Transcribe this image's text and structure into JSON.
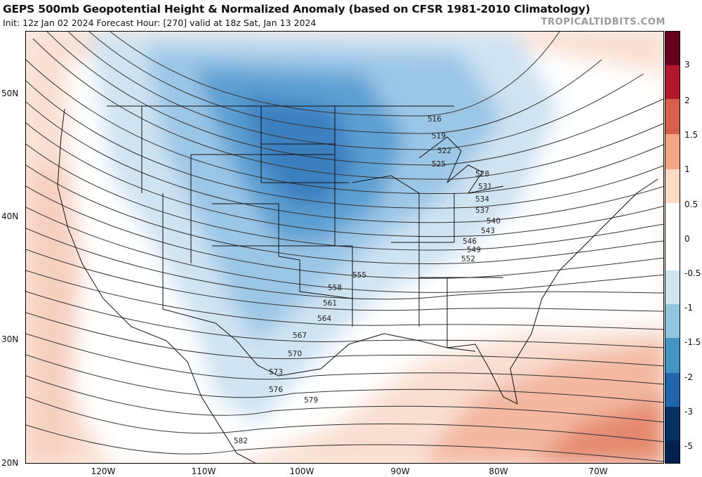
{
  "header": {
    "title": "GEPS 500mb Geopotential Height & Normalized Anomaly (based on CFSR 1981-2010 Climatology)",
    "subtitle": "Init: 12z Jan 02 2024   Forecast Hour: [270]   valid at 18z Sat, Jan 13 2024",
    "watermark": "TROPICALTIDBITS.COM"
  },
  "map": {
    "region": "Contiguous United States",
    "latitude_labels": [
      "50N",
      "40N",
      "30N",
      "20N"
    ],
    "longitude_labels": [
      "120W",
      "110W",
      "100W",
      "90W",
      "80W",
      "70W"
    ],
    "contour_labels": [
      "516",
      "519",
      "522",
      "525",
      "528",
      "531",
      "534",
      "537",
      "540",
      "543",
      "546",
      "549",
      "552",
      "555",
      "558",
      "561",
      "564",
      "567",
      "570",
      "573",
      "576",
      "579",
      "582"
    ],
    "anomaly_colors": {
      "strong_negative": "#2c6fb0",
      "negative": "#6aa7d6",
      "weak_negative": "#bcd9ee",
      "neutral": "#ffffff",
      "weak_positive": "#f6d2c3",
      "positive": "#ec9b80",
      "strong_positive": "#d6604d"
    }
  },
  "colorbar": {
    "tick_labels": [
      "3",
      "2",
      "1.5",
      "1",
      "0.5",
      "0",
      "-0.5",
      "-1",
      "-1.5",
      "-2",
      "-3",
      "-5"
    ],
    "colors": [
      "#67001f",
      "#b2182b",
      "#d6604d",
      "#f4a582",
      "#fddbc7",
      "#ffffff",
      "#ffffff",
      "#d1e5f0",
      "#92c5de",
      "#4393c3",
      "#2166ac",
      "#053061",
      "#022050"
    ]
  }
}
